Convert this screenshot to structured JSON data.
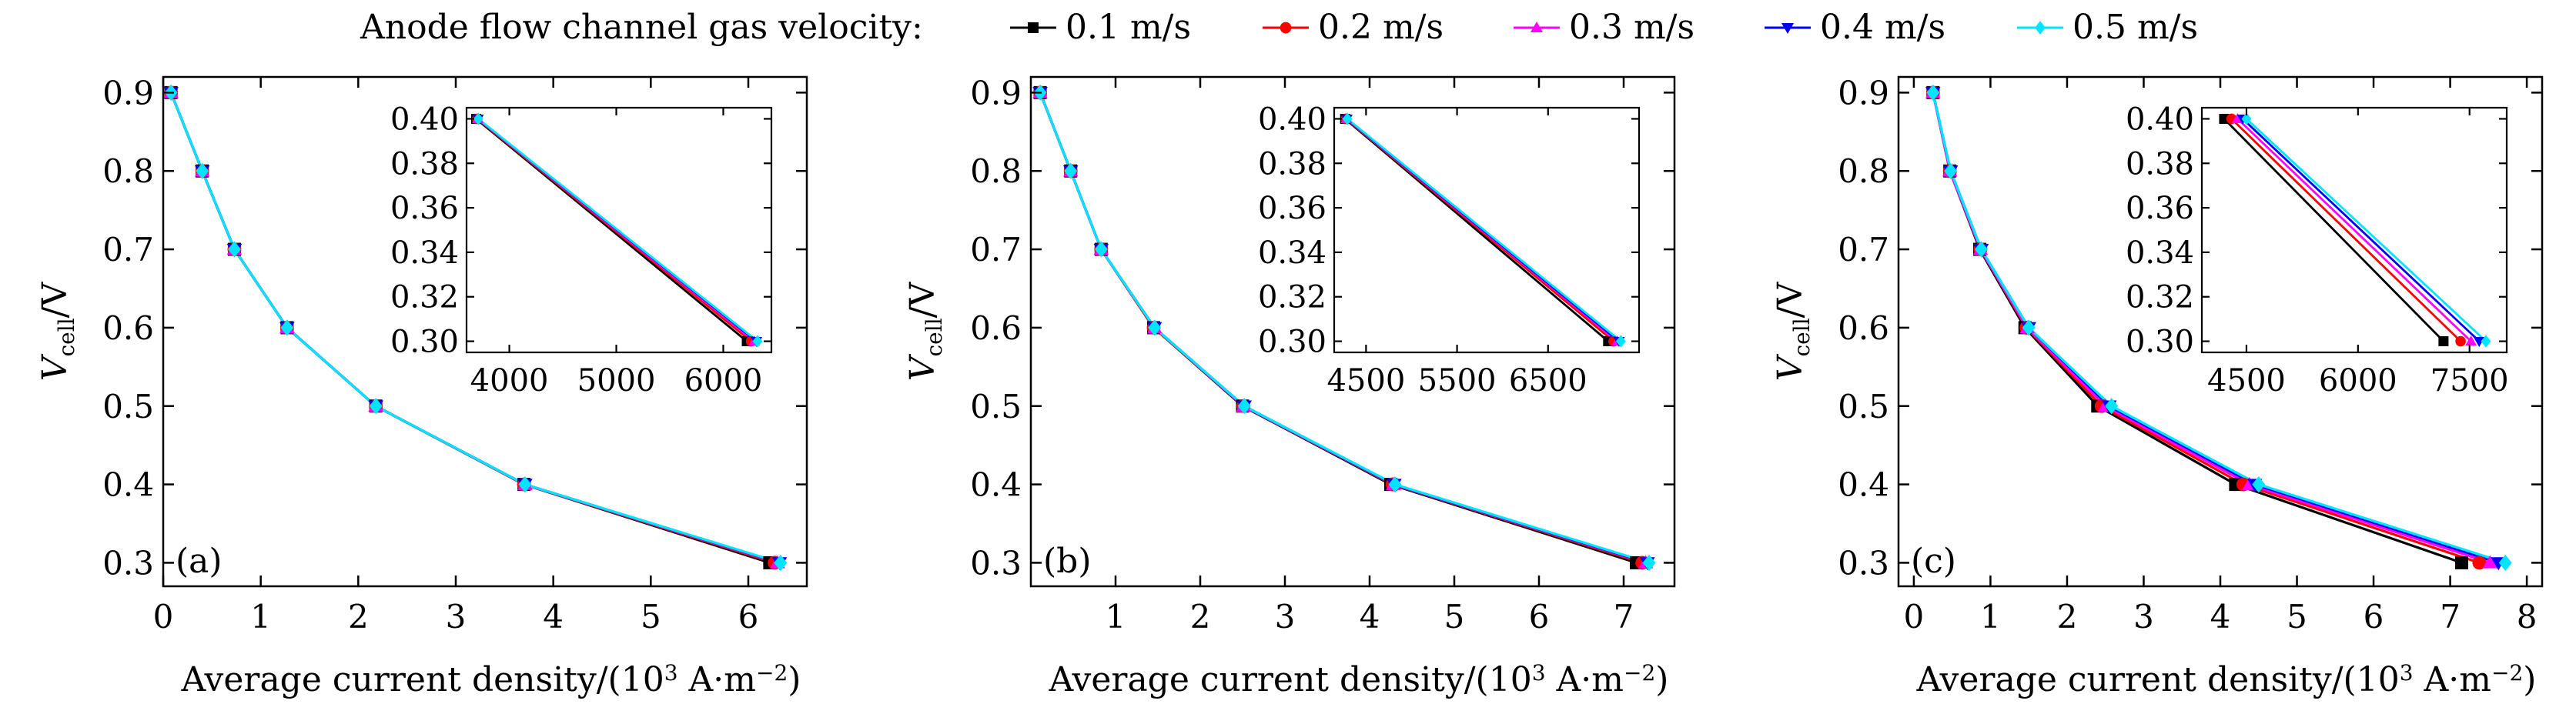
{
  "legend": {
    "title": "Anode flow channel gas velocity:",
    "entries": [
      {
        "label": "0.1 m/s",
        "color": "#000000",
        "marker": "square"
      },
      {
        "label": "0.2 m/s",
        "color": "#ff0000",
        "marker": "circle"
      },
      {
        "label": "0.3 m/s",
        "color": "#ff00ff",
        "marker": "triangle-up"
      },
      {
        "label": "0.4 m/s",
        "color": "#0000ff",
        "marker": "triangle-down"
      },
      {
        "label": "0.5 m/s",
        "color": "#00e5ff",
        "marker": "diamond"
      }
    ]
  },
  "chart_data": [
    {
      "type": "line",
      "panel_label": "(a)",
      "ylabel": {
        "main": "V",
        "sub": "cell",
        "tail": "/V"
      },
      "xlabel": {
        "main": "Average current density/(10",
        "sup": "3",
        "mid": " A·m",
        "sup2": "−2",
        "tail": ")"
      },
      "xlim": [
        0,
        6.6
      ],
      "ylim": [
        0.27,
        0.92
      ],
      "xticks": [
        "0",
        "1",
        "2",
        "3",
        "4",
        "5",
        "6"
      ],
      "yticks": [
        "0.3",
        "0.4",
        "0.5",
        "0.6",
        "0.7",
        "0.8",
        "0.9"
      ],
      "series": [
        {
          "name": "0.1 m/s",
          "points": [
            [
              0.08,
              0.9
            ],
            [
              0.4,
              0.8
            ],
            [
              0.73,
              0.7
            ],
            [
              1.27,
              0.6
            ],
            [
              2.18,
              0.5
            ],
            [
              3.7,
              0.4
            ],
            [
              6.22,
              0.3
            ]
          ]
        },
        {
          "name": "0.2 m/s",
          "points": [
            [
              0.08,
              0.9
            ],
            [
              0.4,
              0.8
            ],
            [
              0.73,
              0.7
            ],
            [
              1.27,
              0.6
            ],
            [
              2.18,
              0.5
            ],
            [
              3.7,
              0.4
            ],
            [
              6.27,
              0.3
            ]
          ]
        },
        {
          "name": "0.3 m/s",
          "points": [
            [
              0.08,
              0.9
            ],
            [
              0.4,
              0.8
            ],
            [
              0.73,
              0.7
            ],
            [
              1.27,
              0.6
            ],
            [
              2.18,
              0.5
            ],
            [
              3.71,
              0.4
            ],
            [
              6.3,
              0.3
            ]
          ]
        },
        {
          "name": "0.4 m/s",
          "points": [
            [
              0.08,
              0.9
            ],
            [
              0.4,
              0.8
            ],
            [
              0.73,
              0.7
            ],
            [
              1.27,
              0.6
            ],
            [
              2.18,
              0.5
            ],
            [
              3.71,
              0.4
            ],
            [
              6.32,
              0.3
            ]
          ]
        },
        {
          "name": "0.5 m/s",
          "points": [
            [
              0.08,
              0.9
            ],
            [
              0.4,
              0.8
            ],
            [
              0.73,
              0.7
            ],
            [
              1.27,
              0.6
            ],
            [
              2.18,
              0.5
            ],
            [
              3.71,
              0.4
            ],
            [
              6.33,
              0.3
            ]
          ]
        }
      ],
      "inset": {
        "xlim": [
          3600,
          6450
        ],
        "ylim": [
          0.295,
          0.405
        ],
        "xticks": [
          4000,
          5000,
          6000
        ],
        "yticks": [
          "0.30",
          "0.32",
          "0.34",
          "0.36",
          "0.38",
          "0.40"
        ],
        "series": [
          {
            "name": "0.1 m/s",
            "points": [
              [
                3690,
                0.4
              ],
              [
                6220,
                0.3
              ]
            ]
          },
          {
            "name": "0.2 m/s",
            "points": [
              [
                3700,
                0.4
              ],
              [
                6260,
                0.3
              ]
            ]
          },
          {
            "name": "0.3 m/s",
            "points": [
              [
                3705,
                0.4
              ],
              [
                6290,
                0.3
              ]
            ]
          },
          {
            "name": "0.4 m/s",
            "points": [
              [
                3708,
                0.4
              ],
              [
                6310,
                0.3
              ]
            ]
          },
          {
            "name": "0.5 m/s",
            "points": [
              [
                3710,
                0.4
              ],
              [
                6320,
                0.3
              ]
            ]
          }
        ]
      }
    },
    {
      "type": "line",
      "panel_label": "(b)",
      "ylabel": {
        "main": "V",
        "sub": "cell",
        "tail": "/V"
      },
      "xlabel": {
        "main": "Average current density/(10",
        "sup": "3",
        "mid": " A·m",
        "sup2": "−2",
        "tail": ")"
      },
      "xlim": [
        0,
        7.6
      ],
      "ylim": [
        0.27,
        0.92
      ],
      "xticks": [
        "1",
        "2",
        "3",
        "4",
        "5",
        "6",
        "7"
      ],
      "yticks": [
        "0.3",
        "0.4",
        "0.5",
        "0.6",
        "0.7",
        "0.8",
        "0.9"
      ],
      "series": [
        {
          "name": "0.1 m/s",
          "points": [
            [
              0.11,
              0.9
            ],
            [
              0.47,
              0.8
            ],
            [
              0.83,
              0.7
            ],
            [
              1.45,
              0.6
            ],
            [
              2.5,
              0.5
            ],
            [
              4.25,
              0.4
            ],
            [
              7.15,
              0.3
            ]
          ]
        },
        {
          "name": "0.2 m/s",
          "points": [
            [
              0.11,
              0.9
            ],
            [
              0.47,
              0.8
            ],
            [
              0.83,
              0.7
            ],
            [
              1.45,
              0.6
            ],
            [
              2.51,
              0.5
            ],
            [
              4.27,
              0.4
            ],
            [
              7.22,
              0.3
            ]
          ]
        },
        {
          "name": "0.3 m/s",
          "points": [
            [
              0.11,
              0.9
            ],
            [
              0.47,
              0.8
            ],
            [
              0.83,
              0.7
            ],
            [
              1.46,
              0.6
            ],
            [
              2.51,
              0.5
            ],
            [
              4.28,
              0.4
            ],
            [
              7.26,
              0.3
            ]
          ]
        },
        {
          "name": "0.4 m/s",
          "points": [
            [
              0.11,
              0.9
            ],
            [
              0.47,
              0.8
            ],
            [
              0.83,
              0.7
            ],
            [
              1.46,
              0.6
            ],
            [
              2.52,
              0.5
            ],
            [
              4.29,
              0.4
            ],
            [
              7.28,
              0.3
            ]
          ]
        },
        {
          "name": "0.5 m/s",
          "points": [
            [
              0.11,
              0.9
            ],
            [
              0.47,
              0.8
            ],
            [
              0.83,
              0.7
            ],
            [
              1.46,
              0.6
            ],
            [
              2.52,
              0.5
            ],
            [
              4.3,
              0.4
            ],
            [
              7.3,
              0.3
            ]
          ]
        }
      ],
      "inset": {
        "xlim": [
          4150,
          7500
        ],
        "ylim": [
          0.295,
          0.405
        ],
        "xticks": [
          4500,
          5500,
          6500
        ],
        "yticks": [
          "0.30",
          "0.32",
          "0.34",
          "0.36",
          "0.38",
          "0.40"
        ],
        "series": [
          {
            "name": "0.1 m/s",
            "points": [
              [
                4270,
                0.4
              ],
              [
                7160,
                0.3
              ]
            ]
          },
          {
            "name": "0.2 m/s",
            "points": [
              [
                4280,
                0.4
              ],
              [
                7220,
                0.3
              ]
            ]
          },
          {
            "name": "0.3 m/s",
            "points": [
              [
                4285,
                0.4
              ],
              [
                7260,
                0.3
              ]
            ]
          },
          {
            "name": "0.4 m/s",
            "points": [
              [
                4290,
                0.4
              ],
              [
                7280,
                0.3
              ]
            ]
          },
          {
            "name": "0.5 m/s",
            "points": [
              [
                4295,
                0.4
              ],
              [
                7300,
                0.3
              ]
            ]
          }
        ]
      }
    },
    {
      "type": "line",
      "panel_label": "(c)",
      "ylabel": {
        "main": "V",
        "sub": "cell",
        "tail": "/V"
      },
      "xlabel": {
        "main": "Average current density/(10",
        "sup": "3",
        "mid": " A·m",
        "sup2": "−2",
        "tail": ")"
      },
      "xlim": [
        -0.2,
        8.2
      ],
      "ylim": [
        0.27,
        0.92
      ],
      "xticks": [
        "0",
        "1",
        "2",
        "3",
        "4",
        "5",
        "6",
        "7",
        "8"
      ],
      "yticks": [
        "0.3",
        "0.4",
        "0.5",
        "0.6",
        "0.7",
        "0.8",
        "0.9"
      ],
      "series": [
        {
          "name": "0.1 m/s",
          "points": [
            [
              0.25,
              0.9
            ],
            [
              0.47,
              0.8
            ],
            [
              0.86,
              0.7
            ],
            [
              1.45,
              0.6
            ],
            [
              2.4,
              0.5
            ],
            [
              4.2,
              0.4
            ],
            [
              7.15,
              0.3
            ]
          ]
        },
        {
          "name": "0.2 m/s",
          "points": [
            [
              0.25,
              0.9
            ],
            [
              0.47,
              0.8
            ],
            [
              0.87,
              0.7
            ],
            [
              1.47,
              0.6
            ],
            [
              2.45,
              0.5
            ],
            [
              4.3,
              0.4
            ],
            [
              7.38,
              0.3
            ]
          ]
        },
        {
          "name": "0.3 m/s",
          "points": [
            [
              0.25,
              0.9
            ],
            [
              0.47,
              0.8
            ],
            [
              0.87,
              0.7
            ],
            [
              1.48,
              0.6
            ],
            [
              2.5,
              0.5
            ],
            [
              4.38,
              0.4
            ],
            [
              7.52,
              0.3
            ]
          ]
        },
        {
          "name": "0.4 m/s",
          "points": [
            [
              0.25,
              0.9
            ],
            [
              0.48,
              0.8
            ],
            [
              0.88,
              0.7
            ],
            [
              1.5,
              0.6
            ],
            [
              2.55,
              0.5
            ],
            [
              4.45,
              0.4
            ],
            [
              7.63,
              0.3
            ]
          ]
        },
        {
          "name": "0.5 m/s",
          "points": [
            [
              0.25,
              0.9
            ],
            [
              0.48,
              0.8
            ],
            [
              0.88,
              0.7
            ],
            [
              1.5,
              0.6
            ],
            [
              2.58,
              0.5
            ],
            [
              4.5,
              0.4
            ],
            [
              7.72,
              0.3
            ]
          ]
        }
      ],
      "inset": {
        "xlim": [
          3900,
          8000
        ],
        "ylim": [
          0.295,
          0.405
        ],
        "xticks": [
          4500,
          6000,
          7500
        ],
        "yticks": [
          "0.30",
          "0.32",
          "0.34",
          "0.36",
          "0.38",
          "0.40"
        ],
        "series": [
          {
            "name": "0.1 m/s",
            "points": [
              [
                4200,
                0.4
              ],
              [
                7150,
                0.3
              ]
            ]
          },
          {
            "name": "0.2 m/s",
            "points": [
              [
                4300,
                0.4
              ],
              [
                7380,
                0.3
              ]
            ]
          },
          {
            "name": "0.3 m/s",
            "points": [
              [
                4380,
                0.4
              ],
              [
                7520,
                0.3
              ]
            ]
          },
          {
            "name": "0.4 m/s",
            "points": [
              [
                4450,
                0.4
              ],
              [
                7630,
                0.3
              ]
            ]
          },
          {
            "name": "0.5 m/s",
            "points": [
              [
                4500,
                0.4
              ],
              [
                7720,
                0.3
              ]
            ]
          }
        ]
      }
    }
  ]
}
